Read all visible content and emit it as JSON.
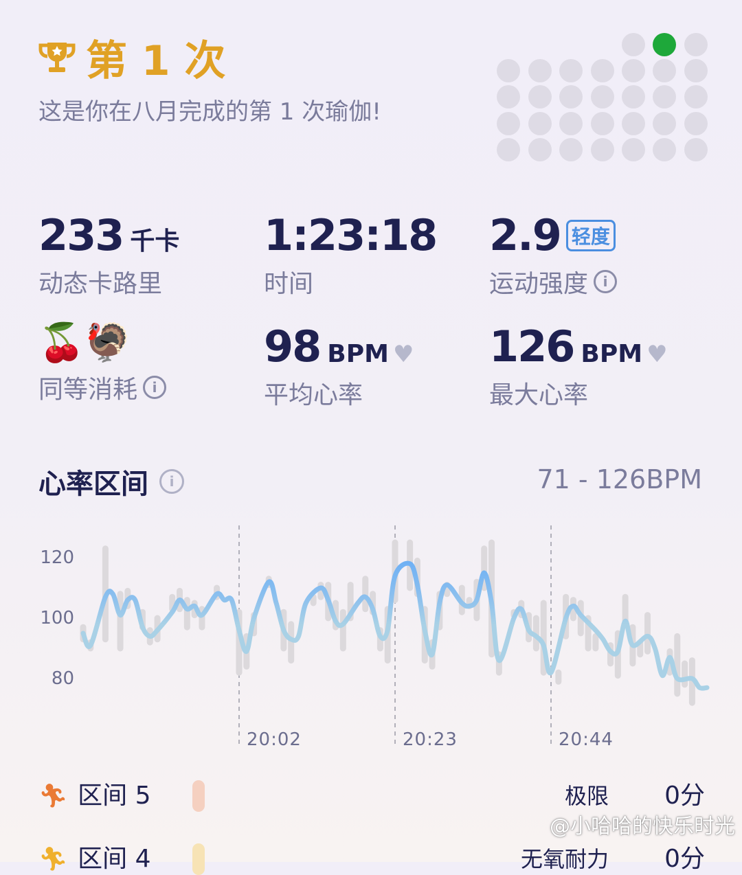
{
  "header": {
    "trophy_icon": "trophy-icon",
    "title": "第 1 次",
    "subtitle": "这是你在八月完成的第 1 次瑜伽!",
    "calendar": {
      "leading_empty": 4,
      "days": 31,
      "highlighted_day": 2,
      "highlight_color": "#1ea83a"
    }
  },
  "stats": {
    "calories": {
      "value": "233",
      "unit": "千卡",
      "label": "动态卡路里"
    },
    "time": {
      "value": "1:23:18",
      "label": "时间"
    },
    "intensity": {
      "value": "2.9",
      "badge": "轻度",
      "label": "运动强度"
    },
    "equivalent": {
      "emojis": "🍒🦃",
      "label": "同等消耗"
    },
    "avg_hr": {
      "value": "98",
      "unit": "BPM",
      "label": "平均心率"
    },
    "max_hr": {
      "value": "126",
      "unit": "BPM",
      "label": "最大心率"
    }
  },
  "hr_section": {
    "title": "心率区间",
    "range": "71 - 126BPM"
  },
  "chart_data": {
    "type": "line",
    "title": "",
    "ylim": [
      70,
      126
    ],
    "yticks": [
      "120",
      "100",
      "80"
    ],
    "xticks": [
      "20:02",
      "20:23",
      "20:44"
    ],
    "colors": {
      "line_high": "#6aaef5",
      "line_low": "#a9d1e6",
      "range_bar": "#dcd9dc"
    },
    "series": [
      {
        "points": [
          [
            "19:41",
            95
          ],
          [
            "19:42",
            91
          ],
          [
            "19:44",
            107
          ],
          [
            "19:45",
            108
          ],
          [
            "19:46",
            101
          ],
          [
            "19:47",
            106
          ],
          [
            "19:48",
            106
          ],
          [
            "19:49",
            97
          ],
          [
            "19:50",
            94
          ],
          [
            "19:51",
            96
          ],
          [
            "19:53",
            102
          ],
          [
            "19:54",
            106
          ],
          [
            "19:55",
            103
          ],
          [
            "19:56",
            104
          ],
          [
            "19:57",
            101
          ],
          [
            "19:59",
            108
          ],
          [
            "20:00",
            106
          ],
          [
            "20:01",
            106
          ],
          [
            "20:02",
            96
          ],
          [
            "20:03",
            89
          ],
          [
            "20:04",
            100
          ],
          [
            "20:06",
            112
          ],
          [
            "20:07",
            105
          ],
          [
            "20:08",
            96
          ],
          [
            "20:09",
            93
          ],
          [
            "20:10",
            94
          ],
          [
            "20:11",
            105
          ],
          [
            "20:13",
            110
          ],
          [
            "20:14",
            106
          ],
          [
            "20:15",
            99
          ],
          [
            "20:16",
            98
          ],
          [
            "20:18",
            105
          ],
          [
            "20:19",
            107
          ],
          [
            "20:20",
            103
          ],
          [
            "20:21",
            94
          ],
          [
            "20:22",
            96
          ],
          [
            "20:23",
            114
          ],
          [
            "20:25",
            118
          ],
          [
            "20:26",
            111
          ],
          [
            "20:27",
            96
          ],
          [
            "20:28",
            88
          ],
          [
            "20:29",
            105
          ],
          [
            "20:30",
            111
          ],
          [
            "20:32",
            105
          ],
          [
            "20:33",
            104
          ],
          [
            "20:34",
            106
          ],
          [
            "20:35",
            115
          ],
          [
            "20:36",
            105
          ],
          [
            "20:37",
            86
          ],
          [
            "20:39",
            100
          ],
          [
            "20:40",
            103
          ],
          [
            "20:41",
            96
          ],
          [
            "20:42",
            94
          ],
          [
            "20:43",
            91
          ],
          [
            "20:44",
            82
          ],
          [
            "20:46",
            100
          ],
          [
            "20:47",
            104
          ],
          [
            "20:48",
            101
          ],
          [
            "20:50",
            96
          ],
          [
            "20:51",
            93
          ],
          [
            "20:52",
            89
          ],
          [
            "20:53",
            89
          ],
          [
            "20:54",
            99
          ],
          [
            "20:55",
            91
          ],
          [
            "20:57",
            94
          ],
          [
            "20:58",
            90
          ],
          [
            "20:59",
            81
          ],
          [
            "21:00",
            87
          ],
          [
            "21:01",
            80
          ],
          [
            "21:03",
            80
          ],
          [
            "21:04",
            77
          ],
          [
            "21:05",
            77
          ]
        ]
      }
    ],
    "ranges": [
      [
        "19:41",
        93,
        97
      ],
      [
        "19:42",
        90,
        92
      ],
      [
        "19:44",
        93,
        123
      ],
      [
        "19:46",
        90,
        108
      ],
      [
        "19:47",
        104,
        109
      ],
      [
        "19:49",
        97,
        102
      ],
      [
        "19:50",
        92,
        96
      ],
      [
        "19:51",
        93,
        100
      ],
      [
        "19:53",
        103,
        107
      ],
      [
        "19:54",
        103,
        109
      ],
      [
        "19:55",
        97,
        106
      ],
      [
        "19:56",
        101,
        105
      ],
      [
        "19:57",
        97,
        103
      ],
      [
        "19:59",
        107,
        110
      ],
      [
        "20:02",
        82,
        102
      ],
      [
        "20:03",
        84,
        94
      ],
      [
        "20:04",
        95,
        101
      ],
      [
        "20:06",
        111,
        113
      ],
      [
        "20:08",
        90,
        102
      ],
      [
        "20:09",
        86,
        98
      ],
      [
        "20:12",
        105,
        107
      ],
      [
        "20:13",
        107,
        111
      ],
      [
        "20:14",
        100,
        111
      ],
      [
        "20:15",
        97,
        105
      ],
      [
        "20:16",
        90,
        102
      ],
      [
        "20:17",
        100,
        111
      ],
      [
        "20:19",
        103,
        113
      ],
      [
        "20:20",
        102,
        108
      ],
      [
        "20:21",
        90,
        96
      ],
      [
        "20:22",
        86,
        103
      ],
      [
        "20:23",
        106,
        125
      ],
      [
        "20:25",
        110,
        125
      ],
      [
        "20:26",
        108,
        119
      ],
      [
        "20:27",
        86,
        103
      ],
      [
        "20:28",
        84,
        92
      ],
      [
        "20:29",
        97,
        108
      ],
      [
        "20:30",
        108,
        111
      ],
      [
        "20:32",
        102,
        110
      ],
      [
        "20:33",
        104,
        106
      ],
      [
        "20:34",
        100,
        112
      ],
      [
        "20:35",
        110,
        123
      ],
      [
        "20:36",
        88,
        125
      ],
      [
        "20:37",
        82,
        88
      ],
      [
        "20:39",
        101,
        102
      ],
      [
        "20:40",
        101,
        105
      ],
      [
        "20:41",
        93,
        101
      ],
      [
        "20:42",
        90,
        100
      ],
      [
        "20:43",
        82,
        105
      ],
      [
        "20:45",
        79,
        82
      ],
      [
        "20:46",
        94,
        107
      ],
      [
        "20:47",
        100,
        106
      ],
      [
        "20:48",
        95,
        105
      ],
      [
        "20:49",
        90,
        100
      ],
      [
        "20:50",
        90,
        94
      ],
      [
        "20:52",
        85,
        91
      ],
      [
        "20:53",
        81,
        95
      ],
      [
        "20:54",
        99,
        107
      ],
      [
        "20:55",
        85,
        97
      ],
      [
        "20:56",
        88,
        92
      ],
      [
        "20:57",
        89,
        101
      ],
      [
        "21:00",
        82,
        89
      ],
      [
        "21:01",
        75,
        94
      ],
      [
        "21:02",
        78,
        85
      ],
      [
        "21:03",
        72,
        86
      ]
    ]
  },
  "zones": [
    {
      "label": "区间 5",
      "name": "极限",
      "minutes": "0分",
      "icon": "runner-icon",
      "color": "#ea7a35",
      "pill_color": "#f5d0c0"
    },
    {
      "label": "区间 4",
      "name": "无氧耐力",
      "minutes": "0分",
      "icon": "runner-icon",
      "color": "#efb02e",
      "pill_color": "#f7e3b5"
    }
  ],
  "watermark": "@小哈哈的快乐时光"
}
